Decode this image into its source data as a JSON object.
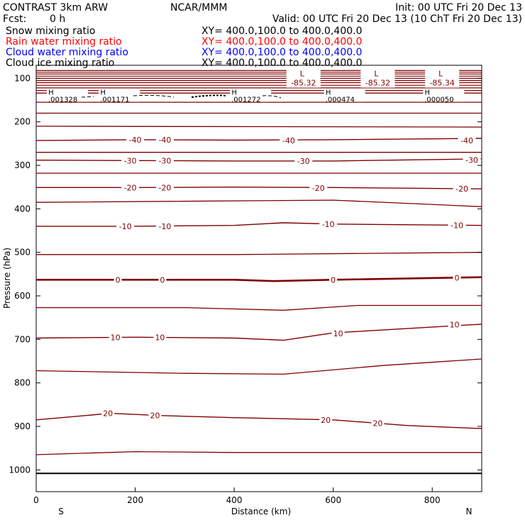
{
  "header": {
    "model_title": "CONTRAST  3km ARW",
    "center": "NCAR/MMM",
    "init": "Init: 00 UTC Fri 20 Dec 13",
    "fcst_label": "Fcst:",
    "fcst_value": "0 h",
    "valid": "Valid: 00 UTC Fri 20 Dec 13 (10 ChT Fri 20 Dec 13)"
  },
  "fields": [
    {
      "name": "Snow mixing ratio",
      "xy": "XY= 400.0,100.0 to 400.0,400.0",
      "color": "#000000"
    },
    {
      "name": "Rain water mixing ratio",
      "xy": "XY= 400.0,100.0 to 400.0,400.0",
      "color": "#ff0000"
    },
    {
      "name": "Cloud water mixing ratio",
      "xy": "XY= 400.0,100.0 to 400.0,400.0",
      "color": "#0000ff"
    },
    {
      "name": "Cloud ice mixing ratio",
      "xy": "XY= 400.0,100.0 to 400.0,400.0",
      "color": "#000000"
    }
  ],
  "chart_data": {
    "type": "line",
    "xlabel": "Distance (km)",
    "ylabel": "Pressure (hPa)",
    "xlim": [
      0,
      900
    ],
    "ylim": [
      1050,
      70
    ],
    "x_ticks": [
      0,
      200,
      400,
      600,
      800
    ],
    "y_ticks": [
      100,
      200,
      300,
      400,
      500,
      600,
      700,
      800,
      900,
      1000
    ],
    "x_end_labels": {
      "left": "S",
      "right": "N"
    },
    "contour_color": "#800000",
    "contours": [
      {
        "label": "-40",
        "points": [
          [
            0,
            243
          ],
          [
            200,
            241
          ],
          [
            400,
            242
          ],
          [
            600,
            241
          ],
          [
            900,
            238
          ]
        ],
        "labels_at": [
          [
            200,
            241
          ],
          [
            260,
            241
          ],
          [
            510,
            243
          ],
          [
            870,
            243
          ]
        ]
      },
      {
        "label": "-30",
        "points": [
          [
            0,
            288
          ],
          [
            200,
            289
          ],
          [
            400,
            290
          ],
          [
            600,
            290
          ],
          [
            900,
            285
          ]
        ],
        "labels_at": [
          [
            190,
            289
          ],
          [
            260,
            289
          ],
          [
            540,
            290
          ],
          [
            880,
            288
          ]
        ]
      },
      {
        "label": "-20",
        "points": [
          [
            0,
            351
          ],
          [
            200,
            351
          ],
          [
            400,
            350
          ],
          [
            600,
            351
          ],
          [
            900,
            354
          ]
        ],
        "labels_at": [
          [
            190,
            351
          ],
          [
            260,
            351
          ],
          [
            570,
            352
          ],
          [
            860,
            354
          ]
        ]
      },
      {
        "label": "-10",
        "points": [
          [
            0,
            440
          ],
          [
            200,
            440
          ],
          [
            400,
            438
          ],
          [
            500,
            432
          ],
          [
            600,
            435
          ],
          [
            900,
            438
          ]
        ],
        "labels_at": [
          [
            180,
            440
          ],
          [
            260,
            440
          ],
          [
            590,
            435
          ],
          [
            850,
            438
          ]
        ]
      },
      {
        "label": "0",
        "points": [
          [
            0,
            563
          ],
          [
            200,
            563
          ],
          [
            400,
            563
          ],
          [
            480,
            566
          ],
          [
            600,
            563
          ],
          [
            900,
            557
          ]
        ],
        "labels_at": [
          [
            165,
            563
          ],
          [
            255,
            563
          ],
          [
            600,
            563
          ],
          [
            850,
            558
          ]
        ],
        "bold": true
      },
      {
        "label": "10",
        "points": [
          [
            0,
            697
          ],
          [
            200,
            695
          ],
          [
            400,
            697
          ],
          [
            500,
            702
          ],
          [
            600,
            685
          ],
          [
            900,
            665
          ]
        ],
        "labels_at": [
          [
            160,
            695
          ],
          [
            250,
            695
          ],
          [
            610,
            686
          ],
          [
            845,
            666
          ]
        ]
      },
      {
        "label": "20",
        "points": [
          [
            0,
            885
          ],
          [
            150,
            870
          ],
          [
            250,
            875
          ],
          [
            400,
            880
          ],
          [
            600,
            885
          ],
          [
            750,
            898
          ],
          [
            900,
            905
          ]
        ],
        "labels_at": [
          [
            145,
            870
          ],
          [
            240,
            875
          ],
          [
            585,
            885
          ],
          [
            690,
            893
          ]
        ]
      }
    ],
    "unlabeled_contours": [
      [
        [
          0,
          134
        ],
        [
          900,
          134
        ]
      ],
      [
        [
          0,
          155
        ],
        [
          900,
          155
        ]
      ],
      [
        [
          0,
          180
        ],
        [
          900,
          180
        ]
      ],
      [
        [
          0,
          210
        ],
        [
          900,
          212
        ]
      ],
      [
        [
          0,
          270
        ],
        [
          900,
          270
        ]
      ],
      [
        [
          0,
          318
        ],
        [
          900,
          318
        ]
      ],
      [
        [
          0,
          385
        ],
        [
          600,
          380
        ],
        [
          900,
          395
        ]
      ],
      [
        [
          0,
          505
        ],
        [
          400,
          505
        ],
        [
          900,
          500
        ]
      ],
      [
        [
          0,
          627
        ],
        [
          300,
          627
        ],
        [
          500,
          633
        ],
        [
          650,
          622
        ],
        [
          900,
          622
        ]
      ],
      [
        [
          0,
          772
        ],
        [
          300,
          778
        ],
        [
          500,
          780
        ],
        [
          700,
          760
        ],
        [
          900,
          745
        ]
      ],
      [
        [
          0,
          965
        ],
        [
          200,
          958
        ],
        [
          400,
          960
        ],
        [
          900,
          960
        ]
      ],
      [
        [
          0,
          1008
        ],
        [
          900,
          1008
        ]
      ]
    ],
    "top_contours": [
      82,
      86,
      90,
      95,
      100,
      105,
      110,
      116,
      122,
      128
    ],
    "lows": [
      {
        "x": 540,
        "value": "-85.32"
      },
      {
        "x": 690,
        "value": "-85.32"
      },
      {
        "x": 820,
        "value": "-85.34"
      }
    ],
    "highs": [
      {
        "x": 30,
        "value": ".001328"
      },
      {
        "x": 135,
        "value": ".001171"
      },
      {
        "x": 400,
        "value": ".001272"
      },
      {
        "x": 590,
        "value": ".000474"
      },
      {
        "x": 790,
        "value": ".000050"
      }
    ],
    "high_low_pressure": 128,
    "low_label": "L",
    "high_label": "H"
  }
}
